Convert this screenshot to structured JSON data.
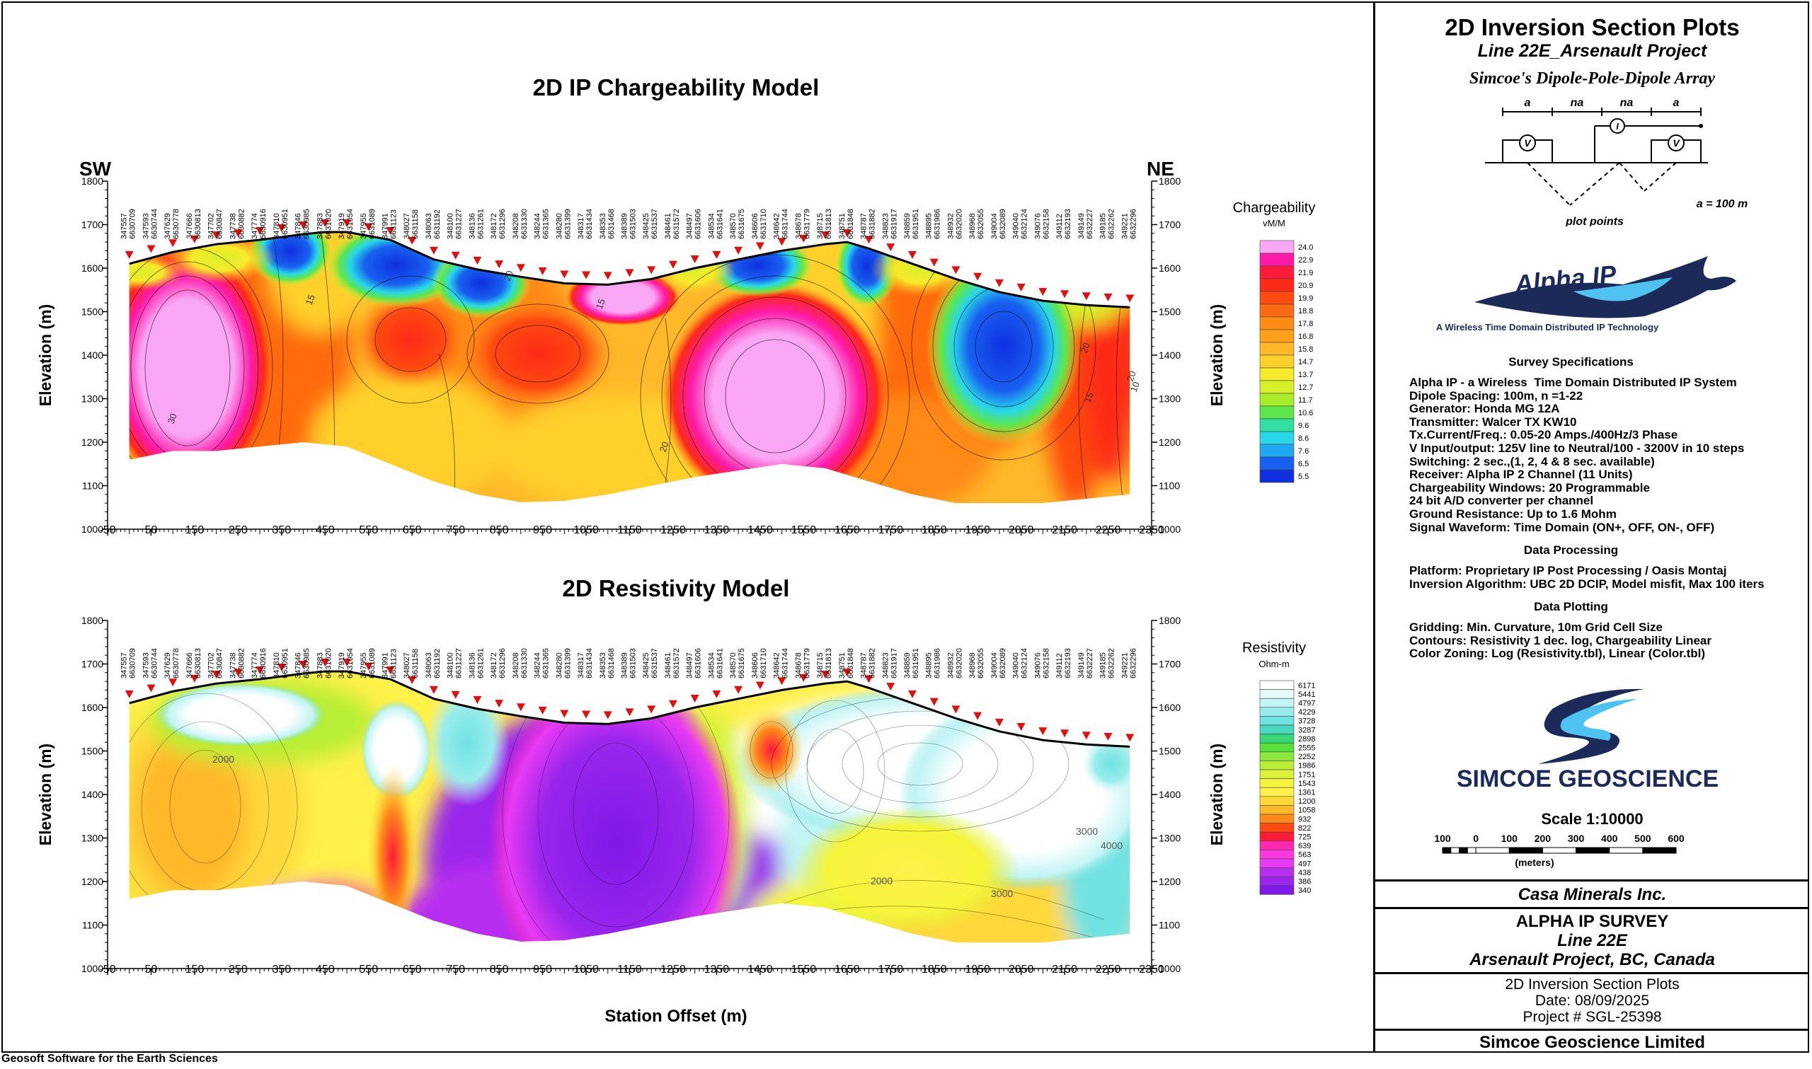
{
  "footer_note": "Geosoft Software for the Earth Sciences",
  "direction_left": "SW",
  "direction_right": "NE",
  "x_axis_label": "Station Offset (m)",
  "y_axis_label": "Elevation (m)",
  "chart_data": [
    {
      "type": "heatmap",
      "title": "2D IP Chargeability Model",
      "xlabel": "",
      "ylabel": "Elevation (m)",
      "x_ticks": [
        -50,
        50,
        150,
        250,
        350,
        450,
        550,
        650,
        750,
        850,
        950,
        1050,
        1150,
        1250,
        1350,
        1450,
        1550,
        1650,
        1750,
        1850,
        1950,
        2050,
        2150,
        2250,
        2350
      ],
      "xlim": [
        -50,
        2350
      ],
      "y_ticks": [
        1000,
        1100,
        1200,
        1300,
        1400,
        1500,
        1600,
        1700,
        1800
      ],
      "ylim": [
        1000,
        1800
      ],
      "legend_title": "Chargeability",
      "legend_unit": "vM/M",
      "legend_values": [
        "24.0",
        "22.9",
        "21.9",
        "20.9",
        "19.9",
        "18.8",
        "17.8",
        "16.8",
        "15.8",
        "14.7",
        "13.7",
        "12.7",
        "11.7",
        "10.6",
        "9.6",
        "8.6",
        "7.6",
        "6.5",
        "5.5"
      ],
      "legend_colors": [
        "#f9a6f5",
        "#ff1aa8",
        "#ff1a3a",
        "#ff2a18",
        "#ff4a10",
        "#ff6a10",
        "#ff8a14",
        "#ffa018",
        "#ffb82a",
        "#ffd02a",
        "#f6ea2a",
        "#d8f02a",
        "#a8ec2a",
        "#5ee64a",
        "#30e0a0",
        "#28d8e8",
        "#20a8f0",
        "#1860f0",
        "#1030e0"
      ],
      "contour_labels": [
        "15",
        "20",
        "15",
        "20",
        "30",
        "20",
        "10",
        "15",
        "20"
      ]
    },
    {
      "type": "heatmap",
      "title": "2D Resistivity Model",
      "xlabel": "Station Offset (m)",
      "ylabel": "Elevation (m)",
      "x_ticks": [
        -50,
        50,
        150,
        250,
        350,
        450,
        550,
        650,
        750,
        850,
        950,
        1050,
        1150,
        1250,
        1350,
        1450,
        1550,
        1650,
        1750,
        1850,
        1950,
        2050,
        2150,
        2250,
        2350
      ],
      "xlim": [
        -50,
        2350
      ],
      "y_ticks": [
        1000,
        1100,
        1200,
        1300,
        1400,
        1500,
        1600,
        1700,
        1800
      ],
      "ylim": [
        1000,
        1800
      ],
      "legend_title": "Resistivity",
      "legend_unit": "Ohm-m",
      "legend_values": [
        "6171",
        "5441",
        "4797",
        "4229",
        "3728",
        "3287",
        "2898",
        "2555",
        "2252",
        "1986",
        "1751",
        "1543",
        "1361",
        "1200",
        "1058",
        "932",
        "822",
        "725",
        "639",
        "563",
        "497",
        "438",
        "386",
        "340"
      ],
      "legend_colors": [
        "#ffffff",
        "#e6fbfb",
        "#c2f4f4",
        "#9aecec",
        "#6fe2e2",
        "#4ad8c0",
        "#38d878",
        "#58e03a",
        "#8ce83a",
        "#b8ee36",
        "#daf238",
        "#f6f43a",
        "#fff04a",
        "#ffd83a",
        "#ffb82a",
        "#ff8a1a",
        "#ff4a14",
        "#ff1a3a",
        "#ff28b0",
        "#ff38e0",
        "#e83af4",
        "#b82ef0",
        "#9a26ec",
        "#8018e8"
      ],
      "contour_labels": [
        "2000",
        "3000",
        "2000",
        "3000",
        "4000"
      ]
    }
  ],
  "station_labels": [
    [
      "347557",
      "6630709"
    ],
    [
      "347593",
      "6630744"
    ],
    [
      "347629",
      "6630778"
    ],
    [
      "347666",
      "6630813"
    ],
    [
      "347702",
      "6630847"
    ],
    [
      "347738",
      "6630882"
    ],
    [
      "347774",
      "6630916"
    ],
    [
      "347810",
      "6630951"
    ],
    [
      "347846",
      "6630985"
    ],
    [
      "347883",
      "6631020"
    ],
    [
      "347919",
      "6631054"
    ],
    [
      "347955",
      "6631089"
    ],
    [
      "347991",
      "6631123"
    ],
    [
      "348027",
      "6631158"
    ],
    [
      "348063",
      "6631192"
    ],
    [
      "348100",
      "6631227"
    ],
    [
      "348136",
      "6631261"
    ],
    [
      "348172",
      "6631296"
    ],
    [
      "348208",
      "6631330"
    ],
    [
      "348244",
      "6631365"
    ],
    [
      "348280",
      "6631399"
    ],
    [
      "348317",
      "6631434"
    ],
    [
      "348353",
      "6631468"
    ],
    [
      "348389",
      "6631503"
    ],
    [
      "348425",
      "6631537"
    ],
    [
      "348461",
      "6631572"
    ],
    [
      "348497",
      "6631606"
    ],
    [
      "348534",
      "6631641"
    ],
    [
      "348570",
      "6631675"
    ],
    [
      "348606",
      "6631710"
    ],
    [
      "348642",
      "6631744"
    ],
    [
      "348678",
      "6631779"
    ],
    [
      "348715",
      "6631813"
    ],
    [
      "348751",
      "6631848"
    ],
    [
      "348787",
      "6631882"
    ],
    [
      "348823",
      "6631917"
    ],
    [
      "348859",
      "6631951"
    ],
    [
      "348895",
      "6631986"
    ],
    [
      "348932",
      "6632020"
    ],
    [
      "348968",
      "6632055"
    ],
    [
      "349004",
      "6632089"
    ],
    [
      "349040",
      "6632124"
    ],
    [
      "349076",
      "6632158"
    ],
    [
      "349112",
      "6632193"
    ],
    [
      "349149",
      "6632227"
    ],
    [
      "349185",
      "6632262"
    ],
    [
      "349221",
      "6632296"
    ]
  ],
  "title_block": {
    "main_title": "2D Inversion Section Plots",
    "subtitle": "Line 22E_Arsenault Project",
    "array_title": "Simcoe's Dipole-Pole-Dipole Array",
    "array_labels": [
      "a",
      "na",
      "na",
      "a"
    ],
    "plot_points": "plot points",
    "a_spacing": "a = 100 m",
    "alpha_logo": "Alpha IP",
    "alpha_tagline": "A Wireless Time Domain Distributed IP Technology",
    "survey_specs_heading": "Survey Specifications",
    "survey_specs": [
      "Alpha IP - a Wireless  Time Domain Distributed IP System",
      "Dipole Spacing: 100m, n =1-22",
      "Generator: Honda MG 12A",
      "Transmitter: Walcer TX KW10",
      "Tx.Current/Freq.: 0.05-20 Amps./400Hz/3 Phase",
      "V Input/output: 125V line to Neutral/100 - 3200V in 10 steps",
      "Switching: 2 sec.,(1, 2, 4 & 8 sec. available)",
      "Receiver: Alpha IP 2 Channel (11 Units)",
      "Chargeability Windows: 20 Programmable",
      "24 bit A/D converter per channel",
      "Ground Resistance: Up to 1.6 Mohm",
      "Signal Waveform: Time Domain (ON+, OFF, ON-, OFF)"
    ],
    "data_processing_heading": "Data Processing",
    "data_processing": [
      "Platform: Proprietary IP Post Processing / Oasis Montaj",
      "Inversion Algorithm: UBC 2D DCIP, Model misfit, Max 100 iters"
    ],
    "data_plotting_heading": "Data Plotting",
    "data_plotting": [
      "Gridding: Min. Curvature, 10m Grid Cell Size",
      "Contours: Resistivity 1 dec. log, Chargeability Linear",
      "Color Zoning: Log (Resistivity.tbl), Linear (Color.tbl)"
    ],
    "simcoe_logo": "SIMCOE GEOSCIENCE",
    "scale": "Scale 1:10000",
    "scale_ticks": [
      "100",
      "0",
      "100",
      "200",
      "300",
      "400",
      "500",
      "600"
    ],
    "scale_unit": "(meters)",
    "client": "Casa Minerals Inc.",
    "survey_name": "ALPHA IP SURVEY",
    "line": "Line 22E",
    "project": "Arsenault Project, BC, Canada",
    "sheet_title": "2D Inversion Section Plots",
    "date": "Date: 08/09/2025",
    "project_no": "Project # SGL-25398",
    "company": "Simcoe Geoscience Limited"
  }
}
